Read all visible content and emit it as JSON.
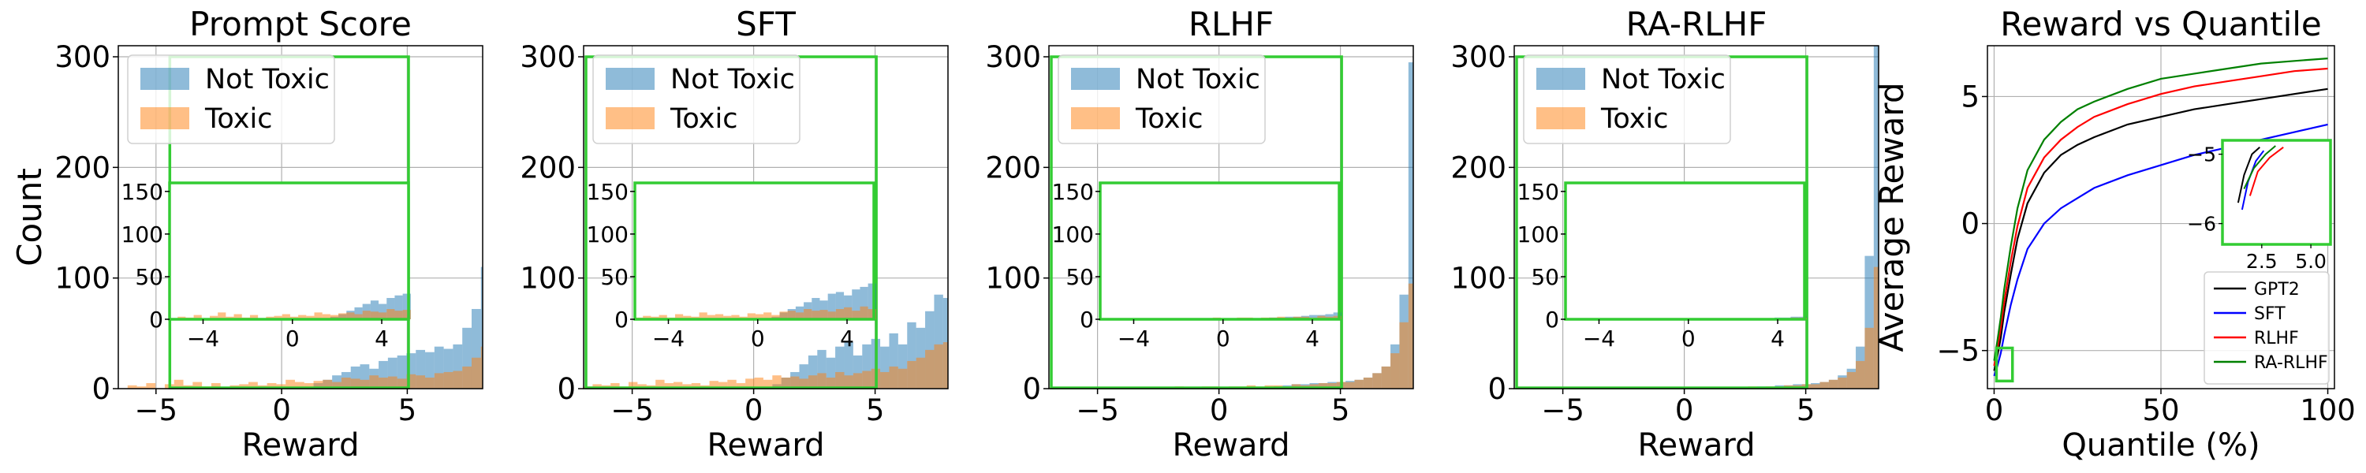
{
  "colors": {
    "not_toxic": "#1f77b4",
    "toxic": "#ff7f0e",
    "highlight": "#33cc33",
    "grid": "#b0b0b0",
    "gpt2": "#000000",
    "sft": "#0000ff",
    "rlhf": "#ff0000",
    "ra_rlhf": "#008000"
  },
  "chart_data": [
    {
      "type": "bar",
      "title": "Prompt Score",
      "xlabel": "Reward",
      "ylabel": "Count",
      "xlim": [
        -6.5,
        8
      ],
      "ylim": [
        0,
        310
      ],
      "xticks": [
        -5,
        0,
        5
      ],
      "yticks": [
        0,
        100,
        200,
        300
      ],
      "legend": [
        "Not Toxic",
        "Toxic"
      ],
      "legend_position": "top-left",
      "bin_start": -6.5,
      "bin_width": 0.37,
      "series": [
        {
          "name": "Not Toxic",
          "values": [
            0,
            0,
            0,
            0,
            0,
            0,
            0,
            0,
            0,
            0,
            0,
            0,
            0,
            0,
            0,
            0,
            0,
            0,
            0,
            0,
            0,
            5,
            8,
            12,
            15,
            20,
            22,
            18,
            25,
            28,
            30,
            32,
            35,
            33,
            38,
            36,
            40,
            55,
            72,
            110,
            95
          ]
        },
        {
          "name": "Toxic",
          "values": [
            0,
            3,
            2,
            5,
            0,
            4,
            8,
            3,
            6,
            2,
            5,
            0,
            3,
            4,
            6,
            3,
            5,
            4,
            8,
            6,
            5,
            7,
            8,
            6,
            10,
            9,
            8,
            12,
            10,
            11,
            9,
            13,
            12,
            10,
            14,
            15,
            16,
            20,
            28,
            38,
            45
          ]
        }
      ],
      "inset": {
        "xlim": [
          -5.5,
          5.2
        ],
        "ylim": [
          0,
          160
        ],
        "xticks": [
          -4,
          0,
          4
        ],
        "yticks": [
          0,
          50,
          100,
          150
        ],
        "series": [
          {
            "name": "Not Toxic",
            "values": [
              0,
              0,
              0,
              0,
              0,
              0,
              0,
              0,
              0,
              0,
              0,
              0,
              0,
              0,
              0,
              0,
              0,
              0,
              0,
              0,
              3,
              6,
              10,
              14,
              18,
              22,
              18,
              25,
              28,
              30
            ]
          },
          {
            "name": "Toxic",
            "values": [
              0,
              3,
              2,
              5,
              0,
              4,
              8,
              3,
              6,
              2,
              5,
              0,
              3,
              4,
              6,
              3,
              5,
              4,
              8,
              6,
              5,
              7,
              8,
              6,
              10,
              9,
              8,
              12,
              10,
              11
            ]
          }
        ]
      }
    },
    {
      "type": "bar",
      "title": "SFT",
      "xlabel": "Reward",
      "xlim": [
        -7,
        8
      ],
      "ylim": [
        0,
        310
      ],
      "xticks": [
        -5,
        0,
        5
      ],
      "yticks": [
        0,
        100,
        200,
        300
      ],
      "legend": [
        "Not Toxic",
        "Toxic"
      ],
      "legend_position": "top-left",
      "bin_start": -7,
      "bin_width": 0.37,
      "series": [
        {
          "name": "Not Toxic",
          "values": [
            0,
            0,
            0,
            0,
            0,
            0,
            0,
            0,
            0,
            0,
            0,
            0,
            0,
            0,
            0,
            0,
            0,
            0,
            0,
            0,
            0,
            4,
            10,
            15,
            22,
            30,
            35,
            28,
            38,
            42,
            30,
            40,
            45,
            38,
            50,
            40,
            60,
            55,
            70,
            85,
            82
          ]
        },
        {
          "name": "Toxic",
          "values": [
            2,
            4,
            3,
            5,
            2,
            6,
            4,
            3,
            8,
            5,
            6,
            4,
            5,
            3,
            7,
            6,
            8,
            5,
            9,
            10,
            8,
            12,
            10,
            11,
            9,
            12,
            14,
            10,
            15,
            12,
            14,
            16,
            18,
            15,
            20,
            18,
            25,
            28,
            35,
            40,
            42
          ]
        }
      ],
      "inset": {
        "xlim": [
          -5.5,
          5.2
        ],
        "ylim": [
          0,
          160
        ],
        "xticks": [
          -4,
          0,
          4
        ],
        "yticks": [
          0,
          50,
          100,
          150
        ],
        "series": [
          {
            "name": "Not Toxic",
            "values": [
              0,
              0,
              0,
              0,
              0,
              0,
              0,
              0,
              0,
              0,
              0,
              0,
              0,
              0,
              0,
              0,
              0,
              3,
              8,
              12,
              15,
              20,
              25,
              22,
              30,
              32,
              28,
              35,
              38,
              42
            ]
          },
          {
            "name": "Toxic",
            "values": [
              2,
              4,
              3,
              5,
              2,
              6,
              4,
              3,
              8,
              5,
              6,
              4,
              5,
              3,
              7,
              6,
              8,
              5,
              9,
              10,
              8,
              12,
              10,
              11,
              9,
              12,
              14,
              10,
              15,
              12
            ]
          }
        ]
      }
    },
    {
      "type": "bar",
      "title": "RLHF",
      "xlabel": "Reward",
      "xlim": [
        -7,
        8
      ],
      "ylim": [
        0,
        310
      ],
      "xticks": [
        -5,
        0,
        5
      ],
      "yticks": [
        0,
        100,
        200,
        300
      ],
      "legend": [
        "Not Toxic",
        "Toxic"
      ],
      "legend_position": "top-left",
      "bin_start": -7,
      "bin_width": 0.37,
      "series": [
        {
          "name": "Not Toxic",
          "values": [
            0,
            0,
            0,
            0,
            0,
            0,
            0,
            0,
            0,
            0,
            0,
            0,
            0,
            0,
            0,
            0,
            0,
            0,
            0,
            0,
            0,
            0,
            0,
            0,
            0,
            2,
            3,
            4,
            4,
            5,
            5,
            6,
            6,
            7,
            8,
            10,
            14,
            20,
            40,
            85,
            295
          ]
        },
        {
          "name": "Toxic",
          "values": [
            1,
            0,
            1,
            0,
            1,
            0,
            0,
            1,
            0,
            1,
            1,
            0,
            1,
            1,
            2,
            1,
            1,
            2,
            2,
            1,
            2,
            2,
            3,
            2,
            3,
            3,
            2,
            4,
            3,
            4,
            5,
            5,
            6,
            6,
            8,
            10,
            14,
            20,
            32,
            60,
            95
          ]
        }
      ],
      "inset": {
        "xlim": [
          -5.5,
          5.2
        ],
        "ylim": [
          0,
          160
        ],
        "xticks": [
          -4,
          0,
          4
        ],
        "yticks": [
          0,
          50,
          100,
          150
        ],
        "series": [
          {
            "name": "Not Toxic",
            "values": [
              0,
              0,
              0,
              0,
              0,
              0,
              0,
              0,
              0,
              0,
              0,
              0,
              0,
              0,
              0,
              0,
              0,
              0,
              0,
              0,
              0,
              2,
              2,
              3,
              3,
              4,
              5,
              5,
              6,
              8
            ]
          },
          {
            "name": "Toxic",
            "values": [
              1,
              0,
              1,
              0,
              1,
              0,
              0,
              1,
              0,
              1,
              1,
              0,
              1,
              1,
              2,
              1,
              1,
              2,
              2,
              1,
              2,
              2,
              3,
              2,
              3,
              3,
              2,
              4,
              3,
              4
            ]
          }
        ]
      }
    },
    {
      "type": "bar",
      "title": "RA-RLHF",
      "xlabel": "Reward",
      "xlim": [
        -7,
        8
      ],
      "ylim": [
        0,
        310
      ],
      "xticks": [
        -5,
        0,
        5
      ],
      "yticks": [
        0,
        100,
        200,
        300
      ],
      "legend": [
        "Not Toxic",
        "Toxic"
      ],
      "legend_position": "top-left",
      "bin_start": -7,
      "bin_width": 0.37,
      "series": [
        {
          "name": "Not Toxic",
          "values": [
            0,
            0,
            0,
            0,
            0,
            0,
            0,
            0,
            0,
            0,
            0,
            0,
            0,
            0,
            0,
            0,
            0,
            0,
            0,
            0,
            0,
            0,
            0,
            0,
            0,
            1,
            1,
            2,
            2,
            3,
            3,
            4,
            4,
            5,
            6,
            8,
            12,
            18,
            38,
            120,
            310
          ]
        },
        {
          "name": "Toxic",
          "values": [
            0,
            0,
            0,
            0,
            0,
            0,
            0,
            0,
            0,
            0,
            0,
            0,
            0,
            0,
            0,
            0,
            0,
            0,
            0,
            0,
            0,
            1,
            1,
            1,
            1,
            1,
            2,
            1,
            2,
            2,
            3,
            3,
            4,
            4,
            6,
            8,
            10,
            15,
            25,
            55,
            110
          ]
        }
      ],
      "inset": {
        "xlim": [
          -5.5,
          5.2
        ],
        "ylim": [
          0,
          160
        ],
        "xticks": [
          -4,
          0,
          4
        ],
        "yticks": [
          0,
          50,
          100,
          150
        ],
        "series": [
          {
            "name": "Not Toxic",
            "values": [
              0,
              0,
              0,
              0,
              0,
              0,
              0,
              0,
              0,
              0,
              0,
              0,
              0,
              0,
              0,
              0,
              0,
              0,
              0,
              0,
              0,
              0,
              0,
              1,
              1,
              1,
              2,
              2,
              3,
              3
            ]
          },
          {
            "name": "Toxic",
            "values": [
              0,
              0,
              0,
              0,
              0,
              0,
              0,
              0,
              0,
              0,
              0,
              0,
              0,
              0,
              0,
              0,
              0,
              0,
              0,
              0,
              0,
              0,
              0,
              0,
              1,
              1,
              1,
              1,
              2,
              2
            ]
          }
        ]
      }
    },
    {
      "type": "line",
      "title": "Reward vs Quantile",
      "xlabel": "Quantile (%)",
      "ylabel": "Average Reward",
      "xlim": [
        -2,
        102
      ],
      "ylim": [
        -6.5,
        7
      ],
      "xticks": [
        0,
        50,
        100
      ],
      "yticks": [
        -5,
        0,
        5
      ],
      "legend_position": "bottom-right",
      "x": [
        0,
        1,
        2,
        3,
        5,
        7,
        10,
        15,
        20,
        25,
        30,
        40,
        50,
        60,
        70,
        80,
        90,
        100
      ],
      "series": [
        {
          "name": "GPT2",
          "values": [
            -5.8,
            -5.2,
            -4.5,
            -3.5,
            -2.0,
            -0.6,
            0.8,
            2.0,
            2.7,
            3.1,
            3.4,
            3.9,
            4.2,
            4.5,
            4.7,
            4.9,
            5.1,
            5.3
          ]
        },
        {
          "name": "SFT",
          "values": [
            -6.0,
            -5.6,
            -5.1,
            -4.4,
            -3.2,
            -2.2,
            -1.0,
            0.0,
            0.6,
            1.0,
            1.4,
            1.9,
            2.3,
            2.7,
            3.0,
            3.3,
            3.6,
            3.9
          ]
        },
        {
          "name": "RLHF",
          "values": [
            -5.6,
            -4.9,
            -4.1,
            -3.1,
            -1.5,
            -0.1,
            1.4,
            2.6,
            3.3,
            3.8,
            4.2,
            4.7,
            5.1,
            5.4,
            5.6,
            5.8,
            6.0,
            6.1
          ]
        },
        {
          "name": "RA-RLHF",
          "values": [
            -5.4,
            -4.6,
            -3.7,
            -2.6,
            -0.9,
            0.6,
            2.1,
            3.3,
            4.0,
            4.5,
            4.8,
            5.3,
            5.7,
            5.9,
            6.1,
            6.3,
            6.4,
            6.5
          ]
        }
      ],
      "inset": {
        "xlim": [
          0.5,
          6
        ],
        "ylim": [
          -6.3,
          -4.8
        ],
        "xticks": [
          2.5,
          5.0
        ],
        "yticks": [
          -5,
          -6
        ]
      }
    }
  ]
}
